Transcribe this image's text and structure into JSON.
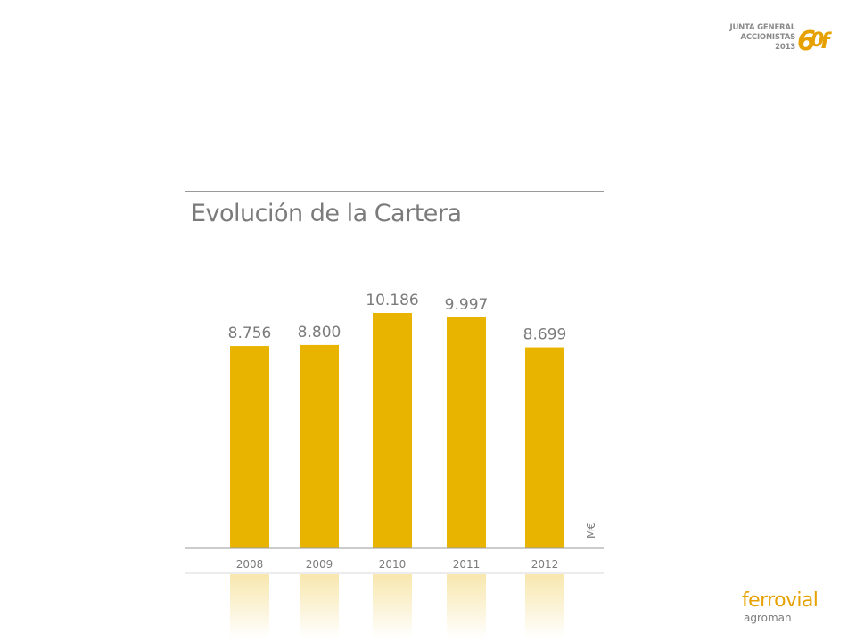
{
  "header_logo": {
    "line1": "JUNTA GENERAL",
    "line2": "ACCIONISTAS",
    "line3": "2013",
    "mark_color": "#e6a100"
  },
  "footer_logo": {
    "name": "ferrovial",
    "sub": "agroman",
    "brand_color": "#e6a100"
  },
  "chart_data": {
    "type": "bar",
    "title": "Evolución de la Cartera",
    "categories": [
      "2008",
      "2009",
      "2010",
      "2011",
      "2012"
    ],
    "values": [
      8756,
      8800,
      10186,
      9997,
      8699
    ],
    "value_labels": [
      "8.756",
      "8.800",
      "10.186",
      "9.997",
      "8.699"
    ],
    "unit": "M€",
    "bar_color": "#e8b400",
    "ylim": [
      0,
      10500
    ],
    "grid": false,
    "legend": "none",
    "reflection": true
  }
}
